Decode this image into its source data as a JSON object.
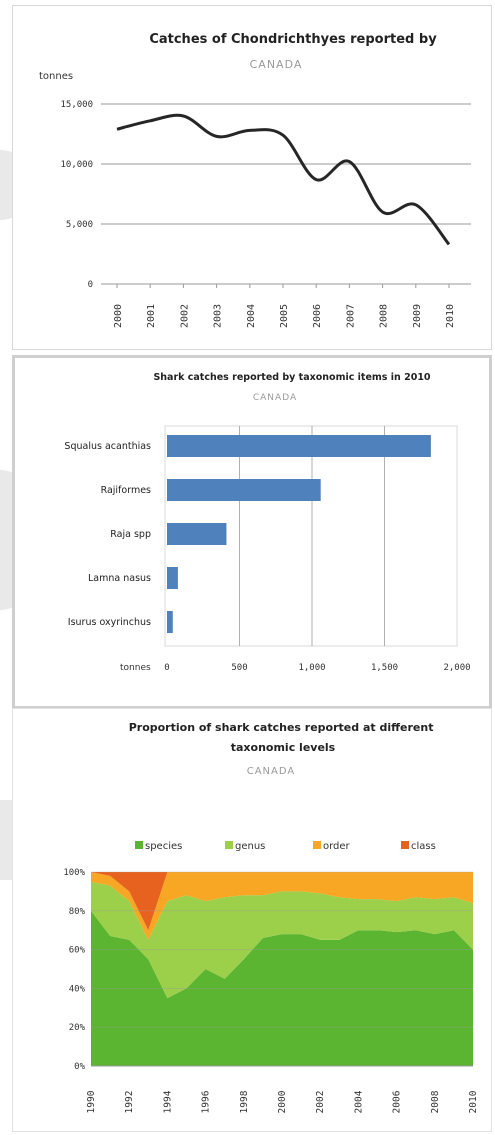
{
  "chart_data": [
    {
      "type": "line",
      "title": "Catches of Chondrichthyes reported by",
      "subtitle": "CANADA",
      "ylabel": "tonnes",
      "ylim": [
        0,
        15000
      ],
      "yticks": [
        "15,000",
        "10,000",
        "5,000",
        "0"
      ],
      "x": [
        "2000",
        "2001",
        "2002",
        "2003",
        "2004",
        "2005",
        "2006",
        "2007",
        "2008",
        "2009",
        "2010"
      ],
      "values": [
        12900,
        13600,
        14000,
        12300,
        12800,
        12400,
        8700,
        10200,
        6000,
        6600,
        3300
      ],
      "line_color": "#262626",
      "grid": true
    },
    {
      "type": "bar",
      "orientation": "horizontal",
      "title": "Shark catches reported by taxonomic items in 2010",
      "subtitle": "CANADA",
      "xlabel": "tonnes",
      "categories": [
        "Squalus acanthias",
        "Rajiformes",
        "Raja spp",
        "Lamna nasus",
        "Isurus oxyrinchus"
      ],
      "values": [
        1820,
        1060,
        410,
        75,
        40
      ],
      "xlim": [
        0,
        2000
      ],
      "xticks": [
        "0",
        "500",
        "1,000",
        "1,500",
        "2,000"
      ],
      "bar_color": "#4f81bd",
      "grid": true
    },
    {
      "type": "area",
      "stacked": true,
      "title": "Proportion of shark catches reported at different taxonomic levels",
      "subtitle": "CANADA",
      "legend_position": "top",
      "ylim": [
        0,
        100
      ],
      "yticks": [
        "100%",
        "80%",
        "60%",
        "40%",
        "20%",
        "0%"
      ],
      "xticks": [
        "1990",
        "1992",
        "1994",
        "1996",
        "1998",
        "2000",
        "2002",
        "2004",
        "2006",
        "2008",
        "2010"
      ],
      "x": [
        1990,
        1991,
        1992,
        1993,
        1994,
        1995,
        1996,
        1997,
        1998,
        1999,
        2000,
        2001,
        2002,
        2003,
        2004,
        2005,
        2006,
        2007,
        2008,
        2009,
        2010
      ],
      "series": [
        {
          "name": "species",
          "color": "#5cb531",
          "values": [
            80,
            67,
            65,
            55,
            35,
            40,
            50,
            45,
            55,
            66,
            68,
            68,
            65,
            65,
            70,
            70,
            69,
            70,
            68,
            70,
            60
          ]
        },
        {
          "name": "genus",
          "color": "#9ccf4a",
          "values": [
            15,
            26,
            20,
            10,
            50,
            48,
            35,
            42,
            33,
            22,
            22,
            22,
            24,
            22,
            16,
            16,
            16,
            17,
            18,
            17,
            24
          ]
        },
        {
          "name": "order",
          "color": "#f7a724",
          "values": [
            5,
            5,
            5,
            5,
            15,
            12,
            15,
            13,
            12,
            12,
            10,
            10,
            11,
            13,
            14,
            14,
            15,
            13,
            14,
            13,
            16
          ]
        },
        {
          "name": "class",
          "color": "#e8621f",
          "values": [
            0,
            2,
            10,
            30,
            0,
            0,
            0,
            0,
            0,
            0,
            0,
            0,
            0,
            0,
            0,
            0,
            0,
            0,
            0,
            0,
            0
          ]
        }
      ]
    }
  ]
}
